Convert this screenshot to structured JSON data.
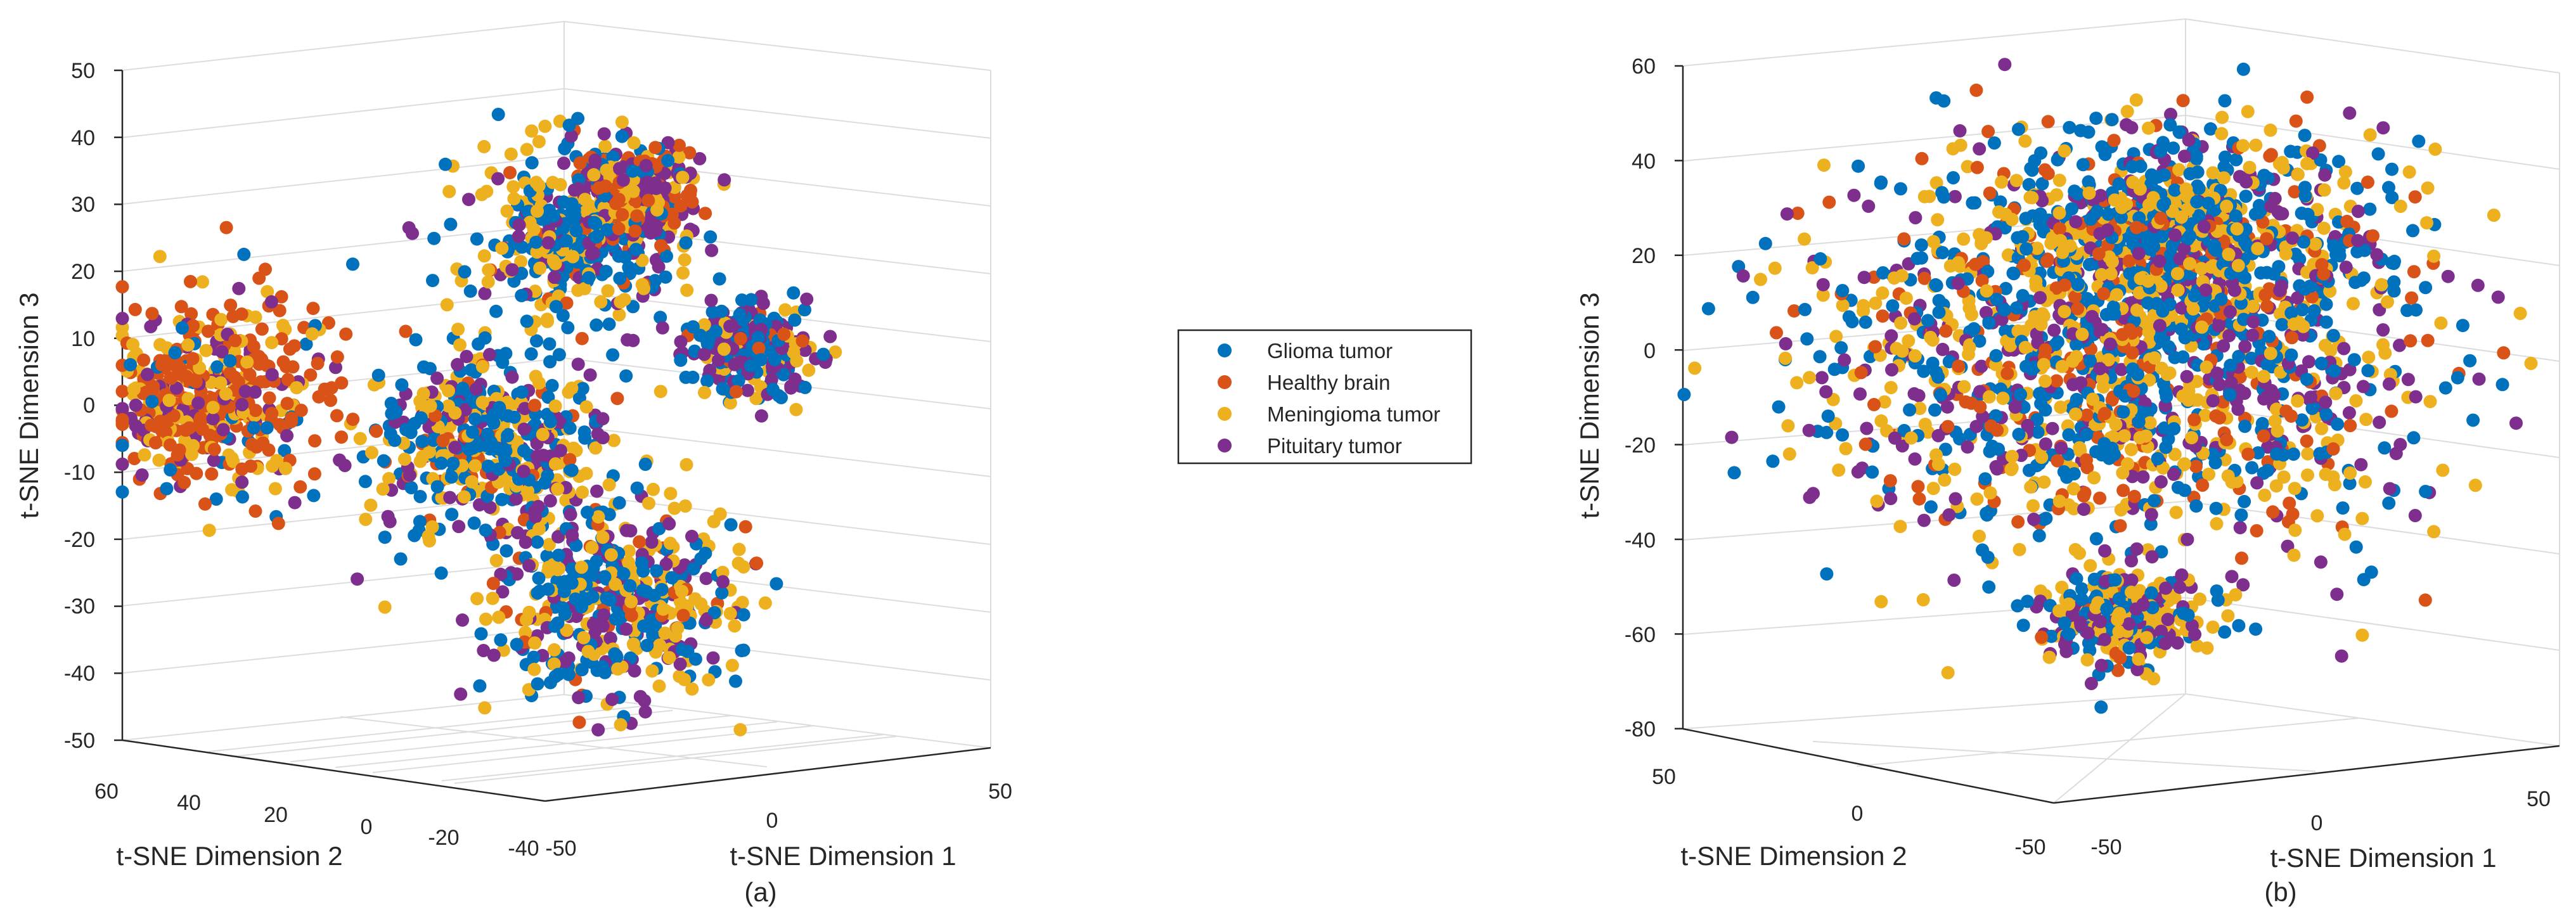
{
  "colors": {
    "glioma": "#0072BD",
    "healthy": "#D95319",
    "meningioma": "#EDB120",
    "pituitary": "#7E2F8E",
    "axis": "#262626",
    "grid": "#dcdcdc"
  },
  "legend": {
    "items": [
      {
        "key": "glioma",
        "label": "Glioma tumor",
        "color": "#0072BD"
      },
      {
        "key": "healthy",
        "label": "Healthy brain",
        "color": "#D95319"
      },
      {
        "key": "meningioma",
        "label": "Meningioma tumor",
        "color": "#EDB120"
      },
      {
        "key": "pituitary",
        "label": "Pituitary tumor",
        "color": "#7E2F8E"
      }
    ]
  },
  "chart_data": [
    {
      "type": "scatter",
      "dimensions": 3,
      "caption": "(a)",
      "xlabel": "t-SNE Dimension 1",
      "ylabel": "t-SNE Dimension 2",
      "zlabel": "t-SNE Dimension 3",
      "xticks": [
        "-50",
        "0",
        "50"
      ],
      "yticks": [
        "60",
        "40",
        "20",
        "0",
        "-20",
        "-40"
      ],
      "zticks": [
        "50",
        "40",
        "30",
        "20",
        "10",
        "0",
        "-10",
        "-20",
        "-30",
        "-40",
        "-50"
      ],
      "xlim": [
        -50,
        50
      ],
      "ylim": [
        -40,
        60
      ],
      "zlim": [
        -50,
        50
      ],
      "series": [
        "Glioma tumor",
        "Healthy brain",
        "Meningioma tumor",
        "Pituitary tumor"
      ],
      "clusters": [
        {
          "desc": "upper",
          "x": -10,
          "y": -5,
          "z": 28,
          "spread": 7,
          "mix": [
            0.45,
            0.05,
            0.35,
            0.15
          ]
        },
        {
          "desc": "top",
          "x": -18,
          "y": -28,
          "z": 37,
          "spread": 4,
          "mix": [
            0.1,
            0.35,
            0.2,
            0.35
          ]
        },
        {
          "desc": "right",
          "x": 20,
          "y": -15,
          "z": 10,
          "spread": 4,
          "mix": [
            0.35,
            0.05,
            0.2,
            0.4
          ]
        },
        {
          "desc": "left",
          "x": -40,
          "y": 50,
          "z": 2,
          "spread": 8,
          "mix": [
            0.1,
            0.5,
            0.25,
            0.15
          ]
        },
        {
          "desc": "middle",
          "x": -10,
          "y": 15,
          "z": -5,
          "spread": 8,
          "mix": [
            0.3,
            0.1,
            0.4,
            0.2
          ]
        },
        {
          "desc": "lower",
          "x": 0,
          "y": -5,
          "z": -28,
          "spread": 8,
          "mix": [
            0.35,
            0.1,
            0.3,
            0.25
          ]
        }
      ]
    },
    {
      "type": "scatter",
      "dimensions": 3,
      "caption": "(b)",
      "xlabel": "t-SNE Dimension 1",
      "ylabel": "t-SNE Dimension 2",
      "zlabel": "t-SNE Dimension 3",
      "xticks": [
        "-50",
        "0",
        "50"
      ],
      "yticks": [
        "50",
        "0",
        "-50"
      ],
      "zticks": [
        "60",
        "40",
        "20",
        "0",
        "-20",
        "-40",
        "-60",
        "-80"
      ],
      "xlim": [
        -50,
        50
      ],
      "ylim": [
        -50,
        50
      ],
      "zlim": [
        -80,
        60
      ],
      "series": [
        "Glioma tumor",
        "Healthy brain",
        "Meningioma tumor",
        "Pituitary tumor"
      ],
      "clusters": [
        {
          "desc": "central cloud",
          "x": 0,
          "y": 0,
          "z": 0,
          "spread": 22,
          "mix": [
            0.32,
            0.14,
            0.3,
            0.24
          ]
        },
        {
          "desc": "upper",
          "x": 10,
          "y": 0,
          "z": 25,
          "spread": 12,
          "mix": [
            0.45,
            0.1,
            0.3,
            0.15
          ]
        },
        {
          "desc": "bottom tail",
          "x": 0,
          "y": 0,
          "z": -55,
          "spread": 5,
          "mix": [
            0.25,
            0.05,
            0.35,
            0.35
          ]
        }
      ]
    }
  ]
}
